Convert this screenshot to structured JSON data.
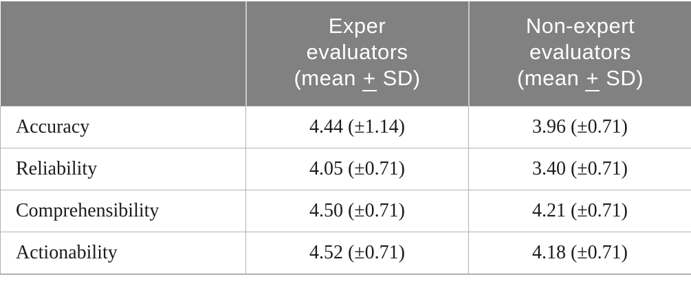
{
  "table": {
    "title_semantic": "evaluation-scores-table",
    "header": {
      "row_label_column": "",
      "columns": [
        {
          "lines": [
            "Exper",
            "evaluators"
          ],
          "stat": {
            "pre": "(mean ",
            "pm": "+",
            "post": " SD)"
          }
        },
        {
          "lines": [
            "Non-expert",
            "evaluators"
          ],
          "stat": {
            "pre": "(mean ",
            "pm": "+",
            "post": " SD)"
          }
        }
      ]
    },
    "rows": [
      {
        "label": "Accuracy",
        "expert": "4.44 (±1.14)",
        "non_expert": "3.96 (±0.71)"
      },
      {
        "label": "Reliability",
        "expert": "4.05 (±0.71)",
        "non_expert": "3.40 (±0.71)"
      },
      {
        "label": "Comprehensibility",
        "expert": "4.50 (±0.71)",
        "non_expert": "4.21 (±0.71)"
      },
      {
        "label": "Actionability",
        "expert": "4.52 (±0.71)",
        "non_expert": "4.18 (±0.71)"
      }
    ],
    "colors": {
      "header_bg": "#818181",
      "header_text": "#ffffff",
      "header_divider": "#c9c9c9",
      "body_border": "#b1b1b1",
      "body_text": "#1c1c1c",
      "page_bg": "#ffffff"
    }
  }
}
